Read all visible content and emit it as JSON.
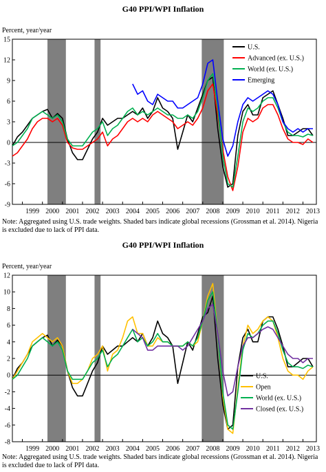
{
  "chart_data": [
    {
      "type": "line",
      "title": "G40 PPI/WPI Inflation",
      "ylabel": "Percent, year/year",
      "xlabel": "",
      "ylim": [
        -9,
        15
      ],
      "yticks": [
        -9,
        -6,
        -3,
        0,
        3,
        6,
        9,
        12,
        15
      ],
      "xlim": [
        1998.5,
        2013.67
      ],
      "xtick_labels": [
        "1999",
        "2000",
        "2001",
        "2002",
        "2003",
        "2004",
        "2005",
        "2006",
        "2007",
        "2008",
        "2009",
        "2010",
        "2011",
        "2012",
        "2013"
      ],
      "recessions": [
        [
          2000.25,
          2001.17
        ],
        [
          2002.6,
          2002.9
        ],
        [
          2007.95,
          2009.05
        ]
      ],
      "legend_position": "top-right",
      "series": [
        {
          "name": "U.S.",
          "color": "#000000",
          "x": [
            1998.5,
            1998.75,
            1999,
            1999.25,
            1999.5,
            1999.75,
            2000,
            2000.25,
            2000.5,
            2000.75,
            2001,
            2001.25,
            2001.5,
            2001.75,
            2002,
            2002.25,
            2002.5,
            2002.75,
            2003,
            2003.25,
            2003.5,
            2003.75,
            2004,
            2004.25,
            2004.5,
            2004.75,
            2005,
            2005.25,
            2005.5,
            2005.75,
            2006,
            2006.25,
            2006.5,
            2006.75,
            2007,
            2007.25,
            2007.5,
            2007.75,
            2008,
            2008.25,
            2008.5,
            2008.75,
            2009,
            2009.25,
            2009.5,
            2009.75,
            2010,
            2010.25,
            2010.5,
            2010.75,
            2011,
            2011.25,
            2011.5,
            2011.75,
            2012,
            2012.25,
            2012.5,
            2012.75,
            2013,
            2013.25,
            2013.5
          ],
          "y": [
            -0.5,
            0.8,
            1.5,
            2.5,
            3.5,
            4.0,
            4.5,
            4.8,
            3.5,
            4.2,
            3.5,
            0.5,
            -1.5,
            -2.5,
            -2.5,
            -1.0,
            0.5,
            1.5,
            3.5,
            2.5,
            3.0,
            3.5,
            3.5,
            4.0,
            4.5,
            4.0,
            5.0,
            3.5,
            4.5,
            6.5,
            5.0,
            4.5,
            3.5,
            -1.0,
            1.5,
            4.0,
            3.0,
            5.0,
            7.0,
            9.0,
            9.5,
            2.0,
            -3.5,
            -6.5,
            -6.0,
            1.0,
            4.5,
            5.5,
            4.0,
            4.0,
            6.5,
            7.0,
            7.5,
            5.5,
            3.5,
            1.0,
            1.0,
            1.5,
            2.0,
            2.0,
            1.0
          ]
        },
        {
          "name": "Advanced (ex. U.S.)",
          "color": "#ff0000",
          "x": [
            1998.5,
            1998.75,
            1999,
            1999.25,
            1999.5,
            1999.75,
            2000,
            2000.25,
            2000.5,
            2000.75,
            2001,
            2001.25,
            2001.5,
            2001.75,
            2002,
            2002.25,
            2002.5,
            2002.75,
            2003,
            2003.25,
            2003.5,
            2003.75,
            2004,
            2004.25,
            2004.5,
            2004.75,
            2005,
            2005.25,
            2005.5,
            2005.75,
            2006,
            2006.25,
            2006.5,
            2006.75,
            2007,
            2007.25,
            2007.5,
            2007.75,
            2008,
            2008.25,
            2008.5,
            2008.75,
            2009,
            2009.25,
            2009.5,
            2009.75,
            2010,
            2010.25,
            2010.5,
            2010.75,
            2011,
            2011.25,
            2011.5,
            2011.75,
            2012,
            2012.25,
            2012.5,
            2012.75,
            2013,
            2013.25,
            2013.5
          ],
          "y": [
            -2.0,
            -1.5,
            -0.5,
            0.5,
            2.0,
            3.0,
            3.5,
            3.5,
            3.0,
            3.5,
            2.5,
            0.0,
            -0.8,
            -1.0,
            -1.0,
            -0.5,
            0.0,
            0.5,
            1.5,
            -0.5,
            0.5,
            1.0,
            2.0,
            3.0,
            3.5,
            3.0,
            3.5,
            3.0,
            4.0,
            4.5,
            4.0,
            3.5,
            3.0,
            2.0,
            2.5,
            3.0,
            2.5,
            3.5,
            5.0,
            7.5,
            8.5,
            4.0,
            -1.0,
            -5.0,
            -7.0,
            -3.5,
            1.5,
            3.5,
            3.0,
            3.5,
            5.0,
            5.5,
            5.5,
            4.0,
            2.0,
            0.5,
            0.0,
            0.0,
            -0.3,
            0.5,
            0.0
          ]
        },
        {
          "name": "World (ex. U.S.)",
          "color": "#00b050",
          "x": [
            1998.5,
            1998.75,
            1999,
            1999.25,
            1999.5,
            1999.75,
            2000,
            2000.25,
            2000.5,
            2000.75,
            2001,
            2001.25,
            2001.5,
            2001.75,
            2002,
            2002.25,
            2002.5,
            2002.75,
            2003,
            2003.25,
            2003.5,
            2003.75,
            2004,
            2004.25,
            2004.5,
            2004.75,
            2005,
            2005.25,
            2005.5,
            2005.75,
            2006,
            2006.25,
            2006.5,
            2006.75,
            2007,
            2007.25,
            2007.5,
            2007.75,
            2008,
            2008.25,
            2008.5,
            2008.75,
            2009,
            2009.25,
            2009.5,
            2009.75,
            2010,
            2010.25,
            2010.5,
            2010.75,
            2011,
            2011.25,
            2011.5,
            2011.75,
            2012,
            2012.25,
            2012.5,
            2012.75,
            2013,
            2013.25,
            2013.5
          ],
          "y": [
            -0.5,
            0.0,
            1.0,
            2.0,
            3.5,
            4.0,
            4.5,
            4.0,
            3.5,
            4.0,
            3.0,
            0.5,
            -0.5,
            -0.5,
            -0.5,
            0.5,
            1.5,
            2.0,
            3.0,
            1.0,
            2.0,
            2.5,
            3.5,
            4.5,
            5.0,
            4.0,
            4.5,
            4.0,
            4.5,
            5.0,
            4.5,
            4.0,
            4.0,
            3.5,
            3.5,
            4.0,
            3.5,
            4.5,
            6.5,
            9.0,
            10.0,
            5.0,
            -2.0,
            -6.0,
            -6.5,
            -2.0,
            3.0,
            5.0,
            4.5,
            5.0,
            6.0,
            6.5,
            6.5,
            5.0,
            3.0,
            1.5,
            1.0,
            1.0,
            0.8,
            1.2,
            1.0
          ]
        },
        {
          "name": "Emerging",
          "color": "#0000ff",
          "x": [
            2004.5,
            2004.75,
            2005,
            2005.25,
            2005.5,
            2005.75,
            2006,
            2006.25,
            2006.5,
            2006.75,
            2007,
            2007.25,
            2007.5,
            2007.75,
            2008,
            2008.25,
            2008.5,
            2008.75,
            2009,
            2009.25,
            2009.5,
            2009.75,
            2010,
            2010.25,
            2010.5,
            2010.75,
            2011,
            2011.25,
            2011.5,
            2011.75,
            2012,
            2012.25,
            2012.5,
            2012.75,
            2013,
            2013.25,
            2013.5
          ],
          "y": [
            8.5,
            7.0,
            7.5,
            6.0,
            5.5,
            7.0,
            6.5,
            6.0,
            6.0,
            5.0,
            5.0,
            5.5,
            6.0,
            6.5,
            8.5,
            11.5,
            12.0,
            6.0,
            0.5,
            -2.0,
            -0.5,
            3.0,
            5.5,
            6.5,
            6.0,
            6.5,
            7.0,
            7.5,
            7.0,
            5.5,
            3.0,
            2.0,
            1.5,
            2.0,
            1.5,
            2.0,
            2.0
          ]
        }
      ]
    },
    {
      "type": "line",
      "title": "G40 PPI/WPI Inflation",
      "ylabel": "Percent, year/year",
      "xlabel": "",
      "ylim": [
        -8,
        12
      ],
      "yticks": [
        -8,
        -6,
        -4,
        -2,
        0,
        2,
        4,
        6,
        8,
        10,
        12
      ],
      "xlim": [
        1998.5,
        2013.67
      ],
      "xtick_labels": [
        "1999",
        "2000",
        "2001",
        "2002",
        "2003",
        "2004",
        "2005",
        "2006",
        "2007",
        "2008",
        "2009",
        "2010",
        "2011",
        "2012",
        "2013"
      ],
      "recessions": [
        [
          2000.25,
          2001.17
        ],
        [
          2002.6,
          2002.9
        ],
        [
          2007.95,
          2009.05
        ]
      ],
      "legend_position": "bottom-right",
      "series": [
        {
          "name": "U.S.",
          "color": "#000000",
          "x": [
            1998.5,
            1998.75,
            1999,
            1999.25,
            1999.5,
            1999.75,
            2000,
            2000.25,
            2000.5,
            2000.75,
            2001,
            2001.25,
            2001.5,
            2001.75,
            2002,
            2002.25,
            2002.5,
            2002.75,
            2003,
            2003.25,
            2003.5,
            2003.75,
            2004,
            2004.25,
            2004.5,
            2004.75,
            2005,
            2005.25,
            2005.5,
            2005.75,
            2006,
            2006.25,
            2006.5,
            2006.75,
            2007,
            2007.25,
            2007.5,
            2007.75,
            2008,
            2008.25,
            2008.5,
            2008.75,
            2009,
            2009.25,
            2009.5,
            2009.75,
            2010,
            2010.25,
            2010.5,
            2010.75,
            2011,
            2011.25,
            2011.5,
            2011.75,
            2012,
            2012.25,
            2012.5,
            2012.75,
            2013,
            2013.25,
            2013.5
          ],
          "y": [
            -0.5,
            0.8,
            1.5,
            2.5,
            3.5,
            4.0,
            4.5,
            4.8,
            3.5,
            4.2,
            3.5,
            0.5,
            -1.5,
            -2.5,
            -2.5,
            -1.0,
            0.5,
            1.5,
            3.5,
            2.5,
            3.0,
            3.5,
            3.5,
            4.0,
            4.5,
            4.0,
            5.0,
            3.5,
            4.5,
            6.5,
            5.0,
            4.5,
            3.5,
            -1.0,
            1.5,
            4.0,
            3.0,
            5.0,
            7.0,
            7.5,
            9.5,
            2.0,
            -3.5,
            -6.5,
            -6.0,
            1.0,
            4.5,
            5.5,
            4.0,
            4.0,
            6.5,
            7.0,
            7.0,
            5.5,
            3.5,
            1.0,
            1.0,
            1.5,
            2.0,
            2.0,
            1.0
          ]
        },
        {
          "name": "Open",
          "color": "#ffc000",
          "x": [
            1998.5,
            1998.75,
            1999,
            1999.25,
            1999.5,
            1999.75,
            2000,
            2000.25,
            2000.5,
            2000.75,
            2001,
            2001.25,
            2001.5,
            2001.75,
            2002,
            2002.25,
            2002.5,
            2002.75,
            2003,
            2003.25,
            2003.5,
            2003.75,
            2004,
            2004.25,
            2004.5,
            2004.75,
            2005,
            2005.25,
            2005.5,
            2005.75,
            2006,
            2006.25,
            2006.5,
            2006.75,
            2007,
            2007.25,
            2007.5,
            2007.75,
            2008,
            2008.25,
            2008.5,
            2008.75,
            2009,
            2009.25,
            2009.5,
            2009.75,
            2010,
            2010.25,
            2010.5,
            2010.75,
            2011,
            2011.25,
            2011.5,
            2011.75,
            2012,
            2012.25,
            2012.5,
            2012.75,
            2013,
            2013.25,
            2013.5
          ],
          "y": [
            -0.5,
            0.5,
            1.5,
            2.5,
            4.0,
            4.5,
            5.0,
            4.5,
            4.0,
            4.5,
            3.5,
            0.5,
            -1.0,
            -1.0,
            -0.5,
            0.5,
            2.0,
            2.5,
            3.5,
            0.5,
            2.5,
            3.0,
            4.5,
            6.5,
            7.0,
            5.0,
            5.0,
            3.5,
            3.5,
            4.5,
            4.0,
            4.0,
            3.5,
            3.5,
            3.5,
            4.0,
            3.5,
            4.0,
            6.5,
            9.5,
            11.0,
            5.0,
            -2.5,
            -6.5,
            -7.0,
            -1.5,
            3.5,
            6.0,
            5.0,
            5.5,
            6.5,
            7.0,
            6.5,
            4.5,
            2.0,
            0.5,
            0.0,
            0.0,
            -0.5,
            0.5,
            1.0
          ]
        },
        {
          "name": "World (ex. U.S.)",
          "color": "#00b050",
          "x": [
            1998.5,
            1998.75,
            1999,
            1999.25,
            1999.5,
            1999.75,
            2000,
            2000.25,
            2000.5,
            2000.75,
            2001,
            2001.25,
            2001.5,
            2001.75,
            2002,
            2002.25,
            2002.5,
            2002.75,
            2003,
            2003.25,
            2003.5,
            2003.75,
            2004,
            2004.25,
            2004.5,
            2004.75,
            2005,
            2005.25,
            2005.5,
            2005.75,
            2006,
            2006.25,
            2006.5,
            2006.75,
            2007,
            2007.25,
            2007.5,
            2007.75,
            2008,
            2008.25,
            2008.5,
            2008.75,
            2009,
            2009.25,
            2009.5,
            2009.75,
            2010,
            2010.25,
            2010.5,
            2010.75,
            2011,
            2011.25,
            2011.5,
            2011.75,
            2012,
            2012.25,
            2012.5,
            2012.75,
            2013,
            2013.25,
            2013.5
          ],
          "y": [
            -0.5,
            0.0,
            1.0,
            2.0,
            3.5,
            4.0,
            4.5,
            4.0,
            3.5,
            4.0,
            3.0,
            0.5,
            -0.5,
            -0.5,
            -0.5,
            0.5,
            1.5,
            2.0,
            3.0,
            1.0,
            2.0,
            2.5,
            3.5,
            4.5,
            5.5,
            4.0,
            4.5,
            3.5,
            4.0,
            5.0,
            4.0,
            4.0,
            3.5,
            3.5,
            3.5,
            4.0,
            3.5,
            4.5,
            6.5,
            9.0,
            10.0,
            5.0,
            -2.0,
            -6.0,
            -6.5,
            -2.0,
            3.0,
            5.0,
            4.5,
            5.0,
            6.0,
            6.5,
            6.5,
            5.0,
            3.0,
            1.5,
            1.0,
            1.0,
            0.8,
            1.2,
            1.0
          ]
        },
        {
          "name": "Closed (ex. U.S.)",
          "color": "#7030a0",
          "x": [
            2004.5,
            2004.75,
            2005,
            2005.25,
            2005.5,
            2005.75,
            2006,
            2006.25,
            2006.5,
            2006.75,
            2007,
            2007.25,
            2007.5,
            2007.75,
            2008,
            2008.25,
            2008.5,
            2008.75,
            2009,
            2009.25,
            2009.5,
            2009.75,
            2010,
            2010.25,
            2010.5,
            2010.75,
            2011,
            2011.25,
            2011.5,
            2011.75,
            2012,
            2012.25,
            2012.5,
            2012.75,
            2013,
            2013.25,
            2013.5
          ],
          "y": [
            5.5,
            5.0,
            4.5,
            3.0,
            3.0,
            3.5,
            3.5,
            3.5,
            3.5,
            3.5,
            3.0,
            3.5,
            4.5,
            5.5,
            6.5,
            8.0,
            8.5,
            5.0,
            0.5,
            -2.5,
            -2.0,
            1.0,
            3.5,
            4.5,
            4.5,
            5.0,
            5.5,
            5.8,
            5.5,
            4.5,
            3.5,
            2.5,
            2.0,
            2.0,
            1.5,
            2.0,
            2.0
          ]
        }
      ]
    }
  ],
  "notes": [
    "Note: Aggregated using U.S. trade weights. Shaded bars indicate global recessions (Grossman et al. 2014). Nigeria is excluded due to lack of PPI data.",
    "Note: Aggregated using U.S. trade weights. Shaded bars indicate global recessions (Grossman et al. 2014). Nigeria is excluded due to lack of PPI data."
  ]
}
